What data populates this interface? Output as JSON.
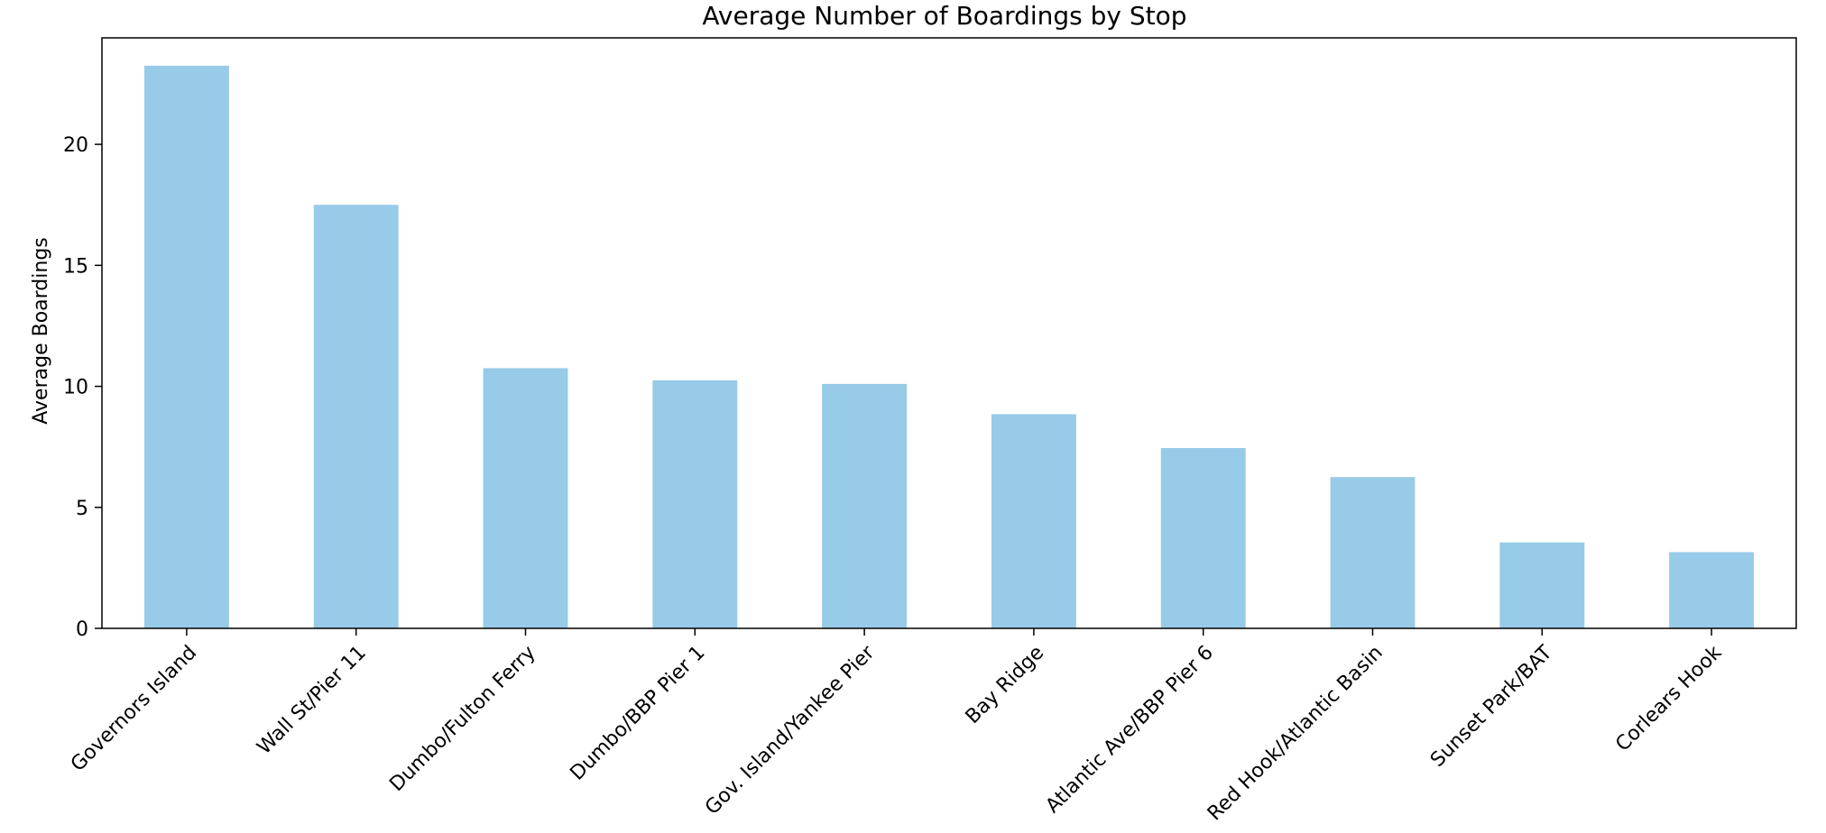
{
  "chart_data": {
    "type": "bar",
    "title": "Average Number of Boardings by Stop",
    "xlabel": "",
    "ylabel": "Average Boardings",
    "categories": [
      "Governors Island",
      "Wall St/Pier 11",
      "Dumbo/Fulton Ferry",
      "Dumbo/BBP Pier 1",
      "Gov. Island/Yankee Pier",
      "Bay Ridge",
      "Atlantic Ave/BBP Pier 6",
      "Red Hook/Atlantic Basin",
      "Sunset Park/BAT",
      "Corlears Hook"
    ],
    "values": [
      23.25,
      17.5,
      10.75,
      10.25,
      10.1,
      8.85,
      7.45,
      6.25,
      3.55,
      3.15
    ],
    "ylim": [
      0,
      24.4
    ],
    "yticks": [
      0,
      5,
      10,
      15,
      20
    ],
    "bar_color": "#97cbe8",
    "grid": false,
    "legend": "none"
  }
}
